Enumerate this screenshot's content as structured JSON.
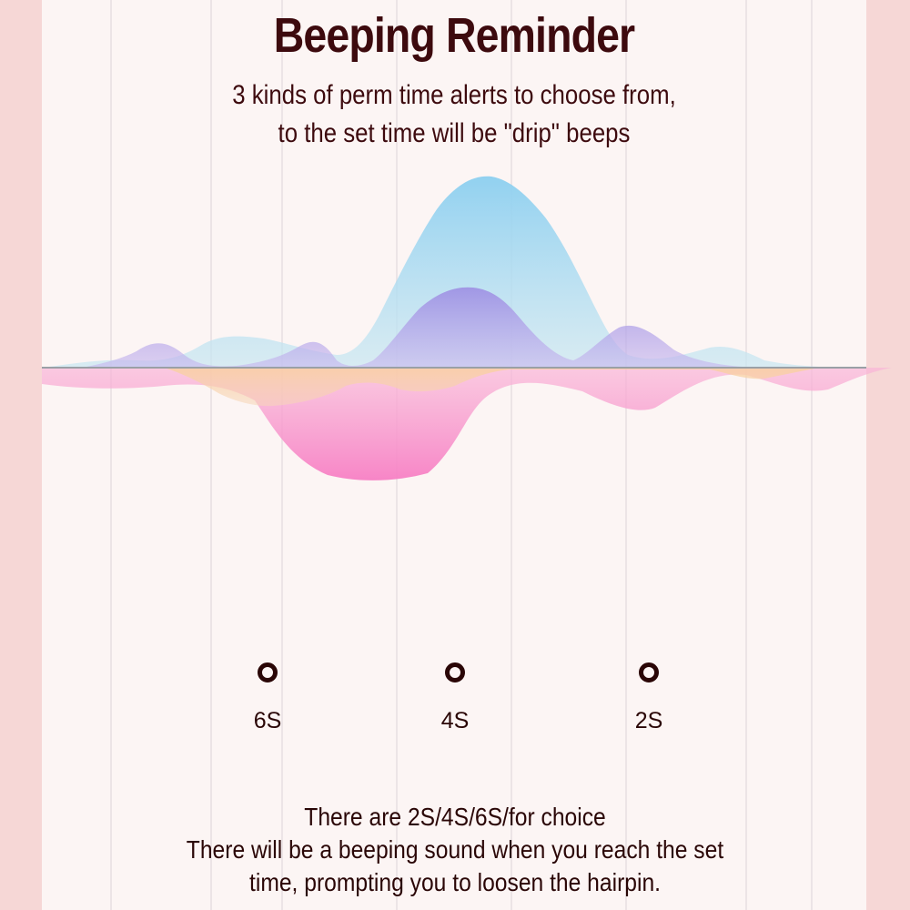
{
  "header": {
    "title": "Beeping Reminder",
    "subtitle_line1": "3 kinds of perm time alerts to choose from,",
    "subtitle_line2": "to the set time will be \"drip\" beeps"
  },
  "options": [
    {
      "label": "6S"
    },
    {
      "label": "4S"
    },
    {
      "label": "2S"
    }
  ],
  "footer": {
    "line1": "There are 2S/4S/6S/for choice",
    "line2": "There will be a beeping sound when you reach the set",
    "line3": "time, prompting you to loosen the hairpin."
  },
  "colors": {
    "background": "#f6d7d6",
    "card": "#fcf5f4",
    "text": "#3d0a0e",
    "wave_blue": "#8fd0ee",
    "wave_purple": "#a99ae6",
    "wave_pink": "#f78fc8",
    "wave_orange": "#f7c79a"
  }
}
